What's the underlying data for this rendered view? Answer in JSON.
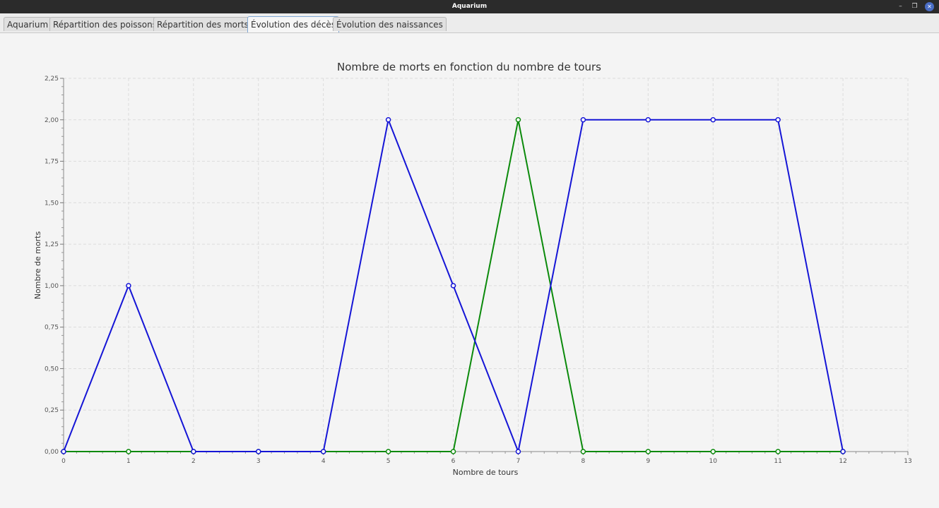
{
  "window": {
    "title": "Aquarium",
    "controls": {
      "minimize": "–",
      "maximize": "❐",
      "close": "✕"
    }
  },
  "tabs": [
    {
      "label": "Aquarium",
      "active": false
    },
    {
      "label": "Répartition des poissons",
      "active": false
    },
    {
      "label": "Répartition des morts",
      "active": false
    },
    {
      "label": "Évolution des décès",
      "active": true
    },
    {
      "label": "Évolution des naissances",
      "active": false
    }
  ],
  "chart_data": {
    "type": "line",
    "title": "Nombre de morts en fonction du nombre de tours",
    "xlabel": "Nombre de tours",
    "ylabel": "Nombre de morts",
    "xlim": [
      0,
      13
    ],
    "ylim": [
      0,
      2.25
    ],
    "xticks": [
      "0",
      "1",
      "2",
      "3",
      "4",
      "5",
      "6",
      "7",
      "8",
      "9",
      "10",
      "11",
      "12",
      "13"
    ],
    "yticks": [
      "0,00",
      "0,25",
      "0,50",
      "0,75",
      "1,00",
      "1,25",
      "1,50",
      "1,75",
      "2,00",
      "2,25"
    ],
    "grid": true,
    "legend": "none",
    "x": [
      0,
      1,
      2,
      3,
      4,
      5,
      6,
      7,
      8,
      9,
      10,
      11,
      12
    ],
    "series": [
      {
        "color": "#0b8a0b",
        "values": [
          0,
          0,
          0,
          0,
          0,
          0,
          0,
          2,
          0,
          0,
          0,
          0,
          0
        ]
      },
      {
        "color": "#1515d6",
        "values": [
          0,
          1,
          0,
          0,
          0,
          2,
          1,
          0,
          2,
          2,
          2,
          2,
          0
        ]
      }
    ]
  }
}
